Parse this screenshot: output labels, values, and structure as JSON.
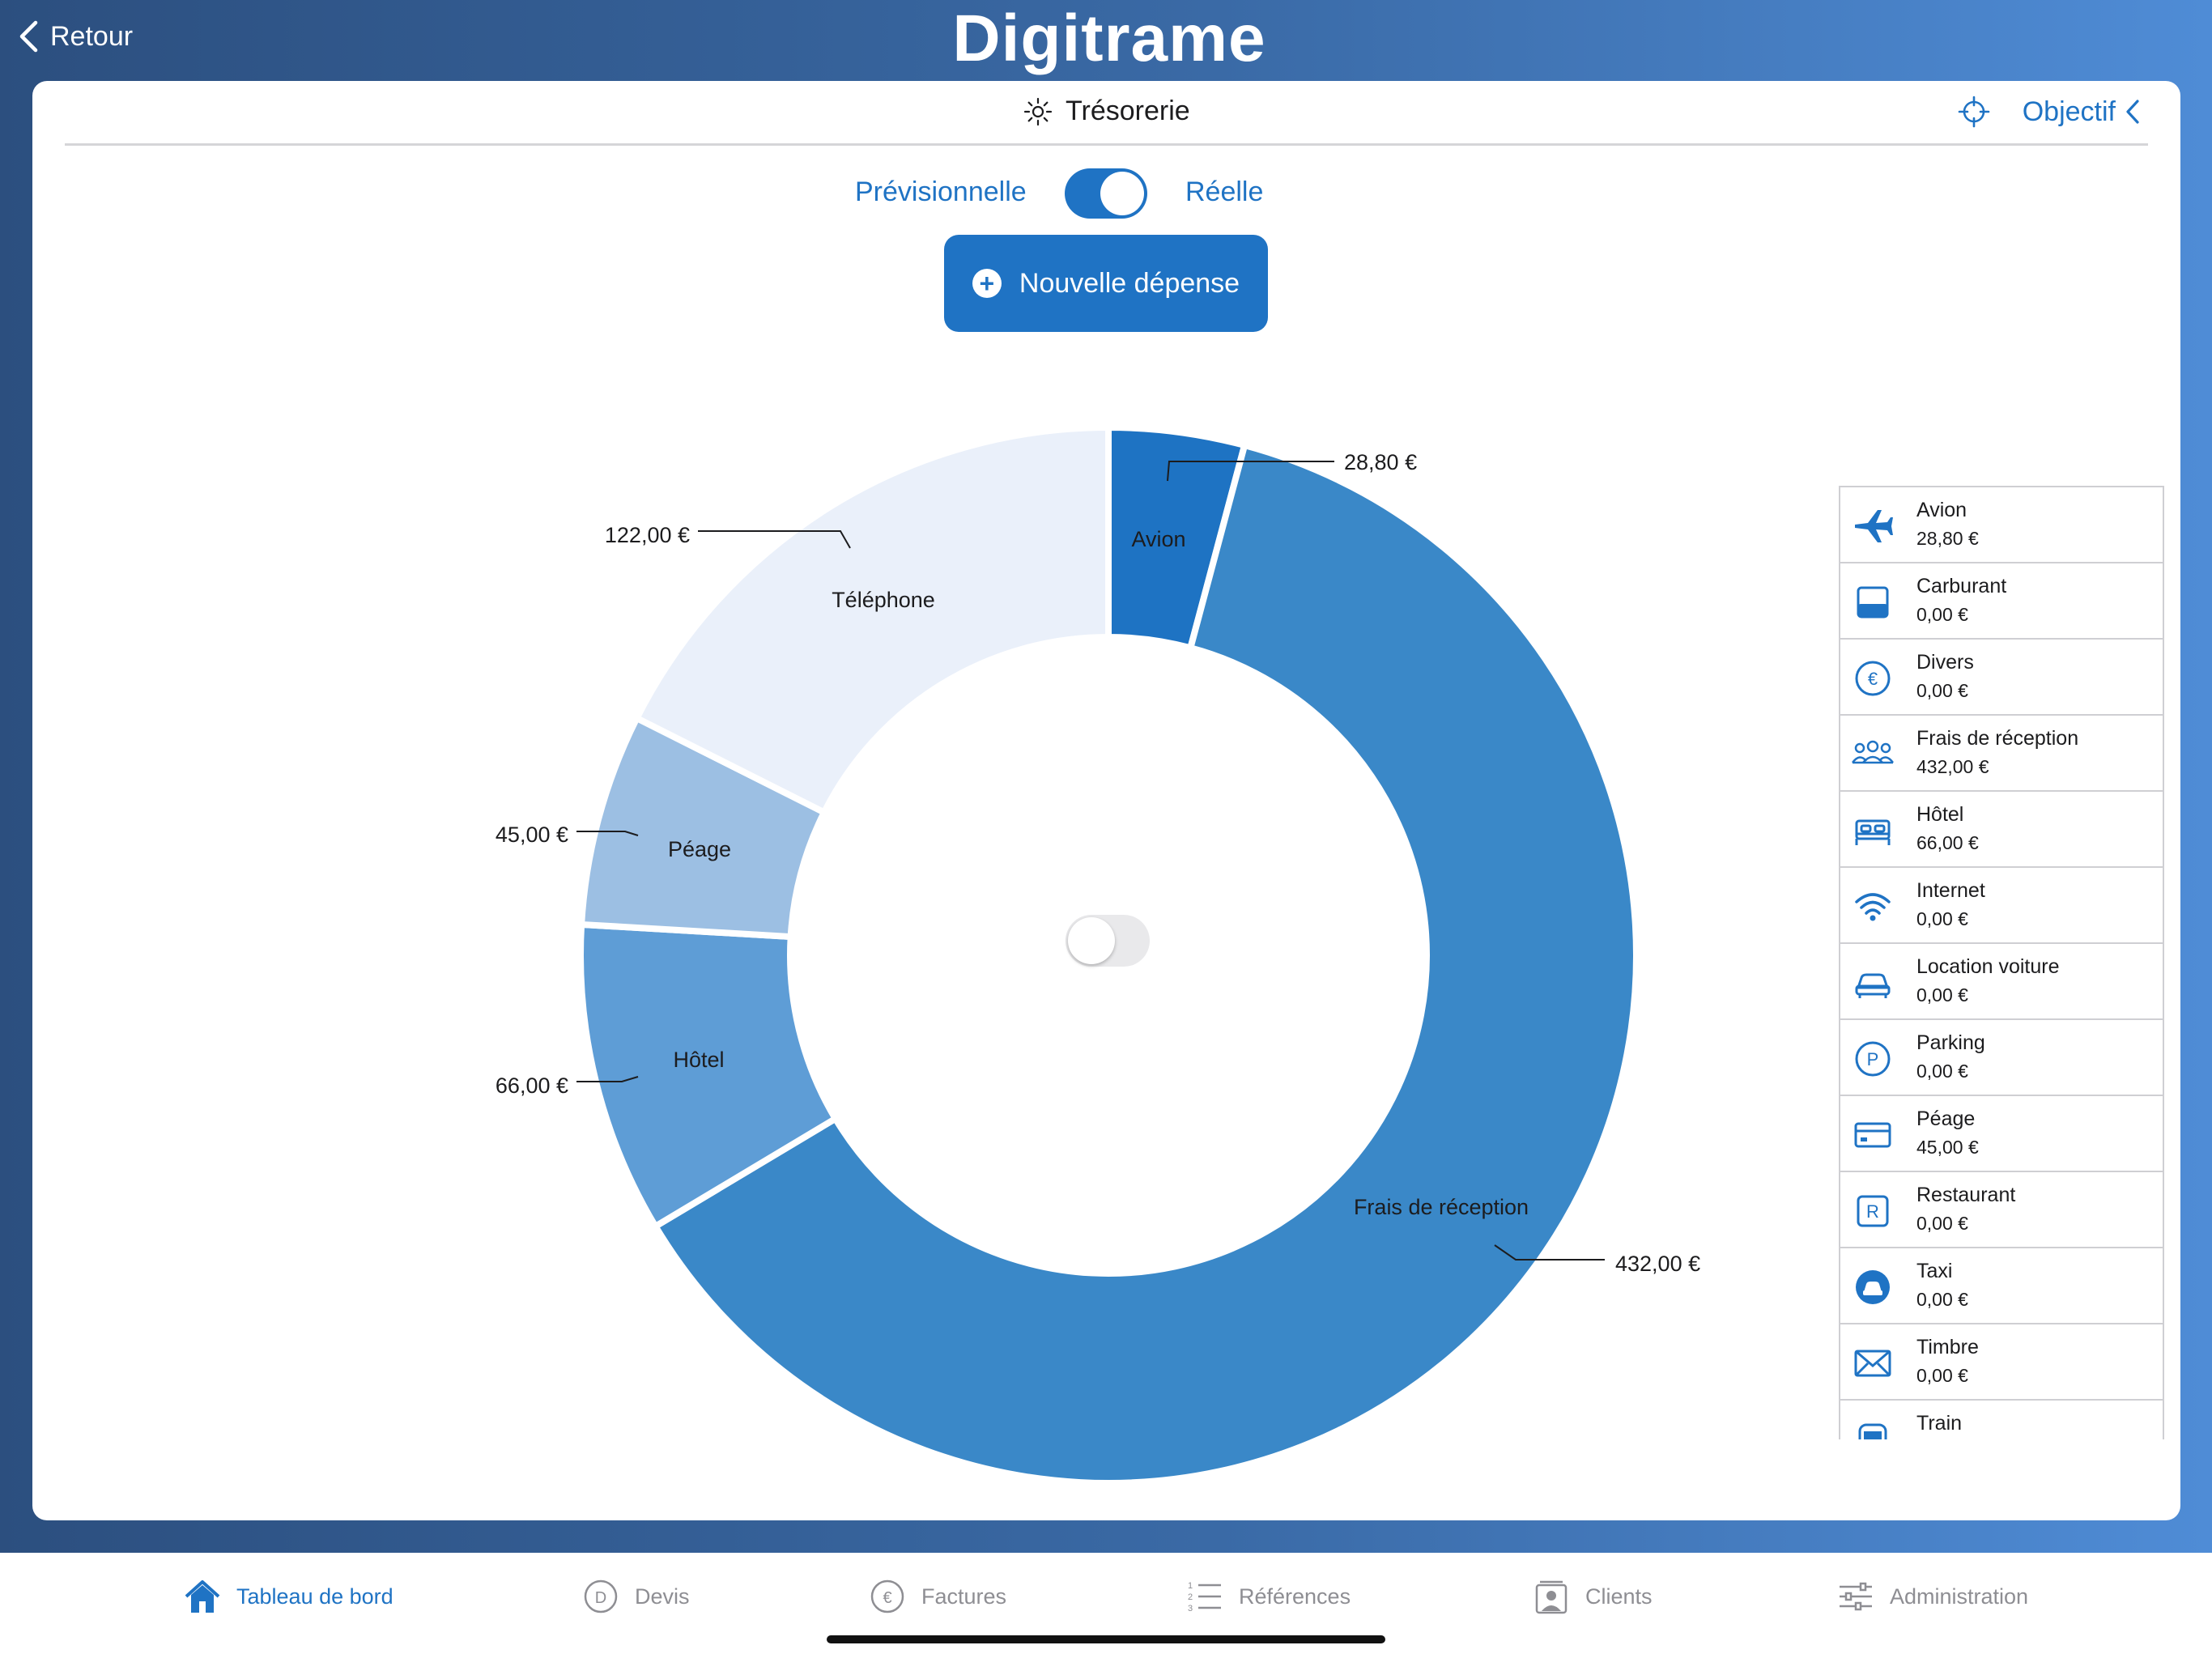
{
  "header": {
    "back_label": "Retour",
    "brand": "Digitrame"
  },
  "card": {
    "title": "Trésorerie",
    "objectif_label": "Objectif",
    "mode_left": "Prévisionnelle",
    "mode_right": "Réelle",
    "new_expense_label": "Nouvelle dépense"
  },
  "colors": {
    "accent": "#1f73c4",
    "slice_avion": "#1e73c3",
    "slice_frais": "#3a88c8",
    "slice_hotel": "#5e9dd6",
    "slice_peage": "#9cbfe3",
    "slice_telephone": "#eaf0fa"
  },
  "chart_data": {
    "type": "pie",
    "categories": [
      "Avion",
      "Frais de réception",
      "Hôtel",
      "Péage",
      "Téléphone"
    ],
    "values": [
      28.8,
      432.0,
      66.0,
      45.0,
      122.0
    ],
    "value_labels": [
      "28,80 €",
      "432,00 €",
      "66,00 €",
      "45,00 €",
      "122,00 €"
    ],
    "slice_colors": [
      "#1e73c3",
      "#3a88c8",
      "#5e9dd6",
      "#9cbfe3",
      "#eaf0fa"
    ],
    "donut": true
  },
  "side_list": [
    {
      "name": "Avion",
      "amount": "28,80 €",
      "icon": "airplane-icon"
    },
    {
      "name": "Carburant",
      "amount": "0,00 €",
      "icon": "fuel-icon"
    },
    {
      "name": "Divers",
      "amount": "0,00 €",
      "icon": "euro-circle-icon"
    },
    {
      "name": "Frais de réception",
      "amount": "432,00 €",
      "icon": "people-icon"
    },
    {
      "name": "Hôtel",
      "amount": "66,00 €",
      "icon": "bed-icon"
    },
    {
      "name": "Internet",
      "amount": "0,00 €",
      "icon": "wifi-icon"
    },
    {
      "name": "Location voiture",
      "amount": "0,00 €",
      "icon": "car-icon"
    },
    {
      "name": "Parking",
      "amount": "0,00 €",
      "icon": "parking-icon"
    },
    {
      "name": "Péage",
      "amount": "45,00 €",
      "icon": "card-icon"
    },
    {
      "name": "Restaurant",
      "amount": "0,00 €",
      "icon": "restaurant-icon"
    },
    {
      "name": "Taxi",
      "amount": "0,00 €",
      "icon": "taxi-icon"
    },
    {
      "name": "Timbre",
      "amount": "0,00 €",
      "icon": "envelope-icon"
    },
    {
      "name": "Train",
      "amount": "",
      "icon": "train-icon"
    }
  ],
  "tabs": [
    {
      "label": "Tableau de bord",
      "icon": "home-icon",
      "active": true
    },
    {
      "label": "Devis",
      "icon": "devis-icon",
      "active": false
    },
    {
      "label": "Factures",
      "icon": "factures-icon",
      "active": false
    },
    {
      "label": "Références",
      "icon": "list-icon",
      "active": false
    },
    {
      "label": "Clients",
      "icon": "clients-icon",
      "active": false
    },
    {
      "label": "Administration",
      "icon": "sliders-icon",
      "active": false
    }
  ]
}
